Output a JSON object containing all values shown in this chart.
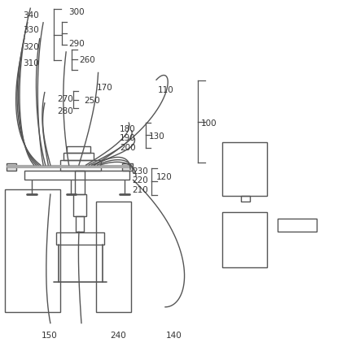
{
  "bg_color": "#ffffff",
  "line_color": "#555555",
  "text_color": "#333333",
  "fig_width": 4.41,
  "fig_height": 4.43
}
